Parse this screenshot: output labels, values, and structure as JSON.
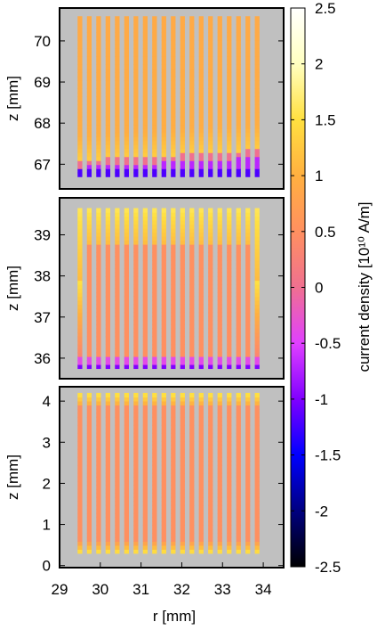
{
  "chart_data": [
    {
      "type": "heatmap",
      "panel": "top",
      "xlabel": "",
      "ylabel": "z [mm]",
      "xlim": [
        29,
        34.5
      ],
      "ylim": [
        66.4,
        70.8
      ],
      "y_ticks": [
        "70",
        "69",
        "68",
        "67"
      ],
      "y_tick_values": [
        70,
        69,
        68,
        67
      ],
      "x_ticks": [],
      "background_color": "#c0c0c0",
      "strips": {
        "count": 20,
        "r_start": 29.5,
        "r_end": 33.85,
        "z_bottom": 66.7,
        "z_top": 70.6
      },
      "field": {
        "bulk_value": 0.55,
        "top_value": 0.8,
        "lower_band_value": 1.3,
        "edge_value": -1.0,
        "edge_thickness_mm": 0.35,
        "edge_z_left": 66.95,
        "edge_z_right": 67.2
      }
    },
    {
      "type": "heatmap",
      "panel": "middle",
      "xlabel": "",
      "ylabel": "z [mm]",
      "xlim": [
        29,
        34.5
      ],
      "ylim": [
        35.5,
        39.9
      ],
      "y_ticks": [
        "39",
        "38",
        "37",
        "36"
      ],
      "y_tick_values": [
        39,
        38,
        37,
        36
      ],
      "x_ticks": [],
      "background_color": "#c0c0c0",
      "strips": {
        "count": 20,
        "r_start": 29.5,
        "r_end": 33.85,
        "z_bottom": 35.75,
        "z_top": 39.65
      },
      "field": {
        "bulk_value": 0.5,
        "upper_band_value": 1.6,
        "upper_band_bottom": 38.75,
        "side_band_value": 1.5,
        "edge_value": -1.0,
        "edge_thickness_mm": 0.15
      }
    },
    {
      "type": "heatmap",
      "panel": "bottom",
      "xlabel": "r [mm]",
      "ylabel": "z [mm]",
      "xlim": [
        29,
        34.5
      ],
      "ylim": [
        -0.05,
        4.35
      ],
      "y_ticks": [
        "4",
        "3",
        "2",
        "1",
        "0"
      ],
      "y_tick_values": [
        4,
        3,
        2,
        1,
        0
      ],
      "x_ticks": [
        "29",
        "30",
        "31",
        "32",
        "33",
        "34"
      ],
      "x_tick_values": [
        29,
        30,
        31,
        32,
        33,
        34
      ],
      "background_color": "#c0c0c0",
      "strips": {
        "count": 20,
        "r_start": 29.5,
        "r_end": 33.85,
        "z_bottom": 0.3,
        "z_top": 4.2
      },
      "field": {
        "bulk_value": 0.5,
        "top_band_value": 1.6,
        "top_band_thickness_mm": 0.3,
        "bottom_band_value": 1.6,
        "bottom_band_thickness_mm": 0.25
      }
    }
  ],
  "colorbar": {
    "label": "current density [10¹⁰ A/m]",
    "min": -2.5,
    "max": 2.5,
    "ticks": [
      "2.5",
      "2",
      "1.5",
      "1",
      "0.5",
      "0",
      "-0.5",
      "-1",
      "-1.5",
      "-2",
      "-2.5"
    ],
    "tick_values": [
      2.5,
      2,
      1.5,
      1,
      0.5,
      0,
      -0.5,
      -1,
      -1.5,
      -2,
      -2.5
    ],
    "palette": [
      "#000000",
      "#000080",
      "#0000ff",
      "#8000ff",
      "#e040ff",
      "#f07090",
      "#ff9060",
      "#ffb040",
      "#ffe040",
      "#ffffc0",
      "#ffffff"
    ]
  }
}
